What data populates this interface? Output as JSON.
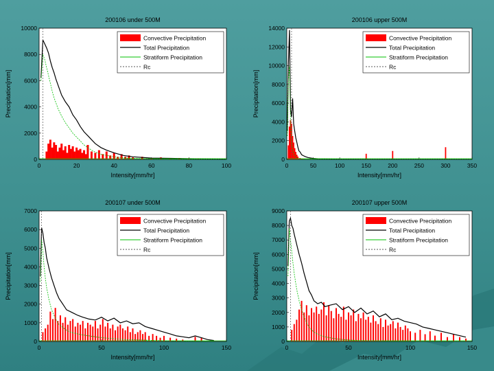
{
  "colors": {
    "background": "#3f9090",
    "convective": "#ff0000",
    "total": "#000000",
    "stratiform": "#00c000",
    "rc": "#555555"
  },
  "chart_data": [
    {
      "type": "bar",
      "title": "200106 under 500M",
      "xlabel": "Intensity[mm/hr]",
      "ylabel": "Precipitation[mm]",
      "xlim": [
        0,
        100
      ],
      "ylim": [
        0,
        10000
      ],
      "xticks": [
        "0",
        "20",
        "40",
        "60",
        "80",
        "100"
      ],
      "yticks": [
        "0",
        "2000",
        "4000",
        "6000",
        "8000",
        "10000"
      ],
      "legend": [
        "Convective Precipitation",
        "Total Precipitation",
        "Stratiform Precipitation",
        "Rc"
      ],
      "legend_position": "top-right",
      "grid": false,
      "series": [
        {
          "name": "Convective Precipitation",
          "kind": "bars",
          "x": [
            4,
            5,
            6,
            7,
            8,
            9,
            10,
            11,
            12,
            13,
            14,
            15,
            16,
            17,
            18,
            19,
            20,
            21,
            22,
            23,
            24,
            25,
            26,
            28,
            30,
            32,
            34,
            36,
            38,
            40,
            42,
            44,
            46,
            48,
            50,
            55,
            60,
            65,
            70,
            75,
            80,
            85,
            90,
            95
          ],
          "y": [
            600,
            1200,
            1500,
            900,
            1300,
            1100,
            600,
            900,
            1200,
            700,
            1000,
            500,
            1100,
            800,
            1000,
            600,
            900,
            700,
            800,
            500,
            700,
            400,
            1100,
            600,
            500,
            700,
            400,
            600,
            300,
            500,
            200,
            400,
            200,
            300,
            150,
            200,
            100,
            150,
            80,
            100,
            60,
            80,
            50,
            40
          ]
        },
        {
          "name": "Total Precipitation",
          "kind": "line",
          "x": [
            1,
            2,
            3,
            4,
            5,
            6,
            7,
            8,
            9,
            10,
            12,
            14,
            16,
            18,
            20,
            22,
            24,
            26,
            28,
            30,
            33,
            36,
            40,
            45,
            50,
            60,
            70,
            80,
            90,
            100
          ],
          "y": [
            6200,
            9100,
            8800,
            8500,
            8100,
            7500,
            7000,
            6600,
            6100,
            5700,
            4900,
            4400,
            4000,
            3400,
            3000,
            2500,
            2100,
            1800,
            1500,
            1200,
            900,
            700,
            500,
            300,
            200,
            100,
            80,
            50,
            30,
            20
          ]
        },
        {
          "name": "Stratiform Precipitation",
          "kind": "line",
          "x": [
            1,
            2,
            3,
            4,
            5,
            6,
            7,
            8,
            9,
            10,
            12,
            14,
            16,
            18,
            20,
            22,
            24,
            26,
            28,
            30,
            33,
            36,
            40,
            45,
            50,
            60,
            70,
            80,
            90,
            100
          ],
          "y": [
            6000,
            8000,
            7600,
            7000,
            6400,
            5800,
            5200,
            4700,
            4300,
            3900,
            3300,
            2800,
            2400,
            2000,
            1700,
            1400,
            1100,
            900,
            700,
            550,
            400,
            300,
            200,
            120,
            80,
            40,
            20,
            10,
            5,
            0
          ]
        },
        {
          "name": "Rc",
          "kind": "vline",
          "x": [
            2
          ]
        }
      ]
    },
    {
      "type": "bar",
      "title": "200106 upper 500M",
      "xlabel": "Intensity[mm/hr]",
      "ylabel": "Precipitation[mm]",
      "xlim": [
        0,
        350
      ],
      "ylim": [
        0,
        14000
      ],
      "xticks": [
        "0",
        "50",
        "100",
        "150",
        "200",
        "250",
        "300",
        "350"
      ],
      "yticks": [
        "0",
        "2000",
        "4000",
        "6000",
        "8000",
        "10000",
        "12000",
        "14000"
      ],
      "legend": [
        "Convective Precipitation",
        "Total Precipitation",
        "Stratiform Precipitation",
        "Rc"
      ],
      "legend_position": "top-right",
      "grid": false,
      "series": [
        {
          "name": "Convective Precipitation",
          "kind": "bars",
          "x": [
            3,
            5,
            7,
            9,
            11,
            13,
            15,
            17,
            19,
            21,
            25,
            30,
            150,
            200,
            300
          ],
          "y": [
            1500,
            3500,
            4200,
            3800,
            2500,
            1800,
            1200,
            800,
            500,
            300,
            150,
            80,
            600,
            900,
            1300
          ]
        },
        {
          "name": "Total Precipitation",
          "kind": "line",
          "x": [
            1,
            3,
            5,
            7,
            9,
            11,
            13,
            15,
            17,
            19,
            21,
            23,
            25,
            28,
            31,
            35,
            40,
            50,
            60,
            80,
            100,
            150,
            200,
            250,
            300,
            350
          ],
          "y": [
            3000,
            10200,
            13800,
            5300,
            4500,
            6500,
            3800,
            3000,
            2300,
            1800,
            1300,
            900,
            800,
            500,
            400,
            300,
            200,
            100,
            60,
            40,
            20,
            10,
            10,
            5,
            5,
            0
          ]
        },
        {
          "name": "Stratiform Precipitation",
          "kind": "line",
          "x": [
            1,
            3,
            5,
            7,
            9,
            11,
            13,
            15,
            17,
            19,
            21,
            25,
            30,
            40,
            50,
            80,
            100,
            150,
            200,
            250,
            300,
            350
          ],
          "y": [
            2500,
            8500,
            10000,
            4000,
            1800,
            1000,
            600,
            400,
            250,
            150,
            100,
            60,
            40,
            20,
            10,
            5,
            0,
            0,
            0,
            0,
            0,
            0
          ]
        },
        {
          "name": "Rc",
          "kind": "vline",
          "x": [
            9
          ]
        }
      ]
    },
    {
      "type": "bar",
      "title": "200107 under 500M",
      "xlabel": "Intensity[mm/hr]",
      "ylabel": "Precipitation[mm]",
      "xlim": [
        0,
        150
      ],
      "ylim": [
        0,
        7000
      ],
      "xticks": [
        "0",
        "50",
        "100",
        "150"
      ],
      "yticks": [
        "0",
        "1000",
        "2000",
        "3000",
        "4000",
        "5000",
        "6000",
        "7000"
      ],
      "legend": [
        "Convective Precipitation",
        "Total Precipitation",
        "Stratiform Precipitation",
        "Rc"
      ],
      "legend_position": "top-right",
      "grid": false,
      "series": [
        {
          "name": "Convective Precipitation",
          "kind": "bars",
          "x": [
            3,
            5,
            7,
            9,
            11,
            13,
            15,
            17,
            19,
            21,
            23,
            25,
            27,
            29,
            31,
            33,
            35,
            37,
            39,
            41,
            43,
            45,
            47,
            49,
            51,
            53,
            55,
            57,
            59,
            61,
            63,
            65,
            67,
            69,
            71,
            73,
            75,
            77,
            79,
            81,
            83,
            85,
            88,
            91,
            94,
            97,
            100,
            105,
            110,
            115,
            125,
            130
          ],
          "y": [
            500,
            700,
            900,
            1600,
            1200,
            1800,
            1100,
            1400,
            1000,
            1300,
            900,
            1100,
            1200,
            800,
            1000,
            900,
            1100,
            700,
            1000,
            900,
            800,
            1100,
            700,
            900,
            1200,
            800,
            1000,
            700,
            900,
            600,
            800,
            900,
            700,
            600,
            800,
            500,
            700,
            400,
            500,
            600,
            400,
            500,
            300,
            400,
            300,
            200,
            300,
            200,
            150,
            100,
            250,
            200
          ]
        },
        {
          "name": "Total Precipitation",
          "kind": "line",
          "x": [
            1,
            2,
            3,
            4,
            5,
            6,
            8,
            10,
            12,
            14,
            16,
            18,
            20,
            22,
            25,
            28,
            31,
            35,
            40,
            45,
            50,
            55,
            60,
            65,
            70,
            75,
            80,
            85,
            90,
            95,
            100,
            105,
            110,
            115,
            120,
            125,
            130,
            135,
            140
          ],
          "y": [
            3500,
            6100,
            5800,
            5300,
            5000,
            4500,
            3900,
            3400,
            3000,
            2600,
            2300,
            2100,
            1900,
            1700,
            1600,
            1500,
            1400,
            1300,
            1200,
            1150,
            1300,
            1100,
            1250,
            1000,
            1100,
            950,
            1000,
            800,
            700,
            600,
            500,
            400,
            300,
            250,
            200,
            300,
            200,
            100,
            50
          ]
        },
        {
          "name": "Stratiform Precipitation",
          "kind": "line",
          "x": [
            1,
            2,
            3,
            4,
            5,
            6,
            8,
            10,
            12,
            14,
            16,
            18,
            20,
            22,
            25,
            28,
            31,
            35,
            40,
            45,
            50,
            60,
            70,
            80,
            90,
            100,
            120,
            140
          ],
          "y": [
            3200,
            5500,
            4800,
            4000,
            3400,
            2900,
            2200,
            1700,
            1400,
            1100,
            900,
            800,
            700,
            600,
            500,
            450,
            400,
            350,
            300,
            250,
            200,
            150,
            100,
            80,
            60,
            40,
            20,
            10
          ]
        },
        {
          "name": "Rc",
          "kind": "vline",
          "x": [
            2
          ]
        }
      ]
    },
    {
      "type": "bar",
      "title": "200107 upper 500M",
      "xlabel": "Intensity[mm/hr]",
      "ylabel": "Precipitation[mm]",
      "xlim": [
        0,
        150
      ],
      "ylim": [
        0,
        9000
      ],
      "xticks": [
        "0",
        "50",
        "100",
        "150"
      ],
      "yticks": [
        "0",
        "1000",
        "2000",
        "3000",
        "4000",
        "5000",
        "6000",
        "7000",
        "8000",
        "9000"
      ],
      "legend": [
        "Convective Precipitation",
        "Total Precipitation",
        "Stratiform Precipitation",
        "Rc"
      ],
      "legend_position": "top-right",
      "grid": false,
      "series": [
        {
          "name": "Convective Precipitation",
          "kind": "bars",
          "x": [
            4,
            6,
            8,
            10,
            12,
            14,
            16,
            18,
            20,
            22,
            24,
            26,
            28,
            30,
            32,
            34,
            36,
            38,
            40,
            42,
            44,
            46,
            48,
            50,
            52,
            54,
            56,
            58,
            60,
            62,
            64,
            66,
            68,
            70,
            72,
            74,
            76,
            78,
            80,
            82,
            84,
            86,
            88,
            90,
            92,
            94,
            96,
            98,
            100,
            104,
            108,
            112,
            116,
            120,
            125,
            130,
            135,
            140,
            145
          ],
          "y": [
            800,
            1200,
            1500,
            2200,
            2800,
            2000,
            2500,
            1800,
            2300,
            2000,
            2400,
            1900,
            2200,
            2700,
            1800,
            2500,
            2100,
            1600,
            2300,
            1900,
            1700,
            2400,
            1500,
            2000,
            1800,
            2200,
            1400,
            1900,
            1600,
            2000,
            1500,
            1700,
            1300,
            1800,
            1400,
            1200,
            1600,
            1000,
            1500,
            1100,
            1200,
            1400,
            900,
            1300,
            1000,
            800,
            1100,
            900,
            700,
            600,
            800,
            500,
            700,
            400,
            600,
            300,
            500,
            300,
            200
          ]
        },
        {
          "name": "Total Precipitation",
          "kind": "line",
          "x": [
            1,
            2,
            3,
            4,
            5,
            6,
            8,
            10,
            12,
            14,
            16,
            18,
            20,
            22,
            25,
            28,
            31,
            35,
            40,
            45,
            50,
            55,
            60,
            65,
            70,
            75,
            80,
            85,
            90,
            95,
            100,
            105,
            110,
            115,
            120,
            125,
            130,
            135,
            140,
            145
          ],
          "y": [
            5200,
            8300,
            8500,
            8000,
            7800,
            7400,
            6700,
            6000,
            5400,
            4700,
            4100,
            3500,
            3200,
            2800,
            2600,
            2700,
            2400,
            2500,
            2600,
            2200,
            2400,
            2000,
            2300,
            1900,
            2100,
            1700,
            1900,
            1500,
            1600,
            1400,
            1300,
            1200,
            1000,
            900,
            800,
            700,
            600,
            500,
            400,
            300
          ]
        },
        {
          "name": "Stratiform Precipitation",
          "kind": "line",
          "x": [
            1,
            2,
            3,
            4,
            5,
            6,
            8,
            10,
            12,
            14,
            16,
            18,
            20,
            22,
            25,
            28,
            31,
            35,
            40,
            50,
            60,
            80,
            100,
            120,
            145
          ],
          "y": [
            4500,
            7800,
            7000,
            6200,
            5400,
            4700,
            3600,
            2800,
            2200,
            1700,
            1300,
            1000,
            800,
            650,
            500,
            400,
            320,
            250,
            180,
            100,
            60,
            30,
            15,
            8,
            0
          ]
        },
        {
          "name": "Rc",
          "kind": "vline",
          "x": [
            3
          ]
        }
      ]
    }
  ]
}
